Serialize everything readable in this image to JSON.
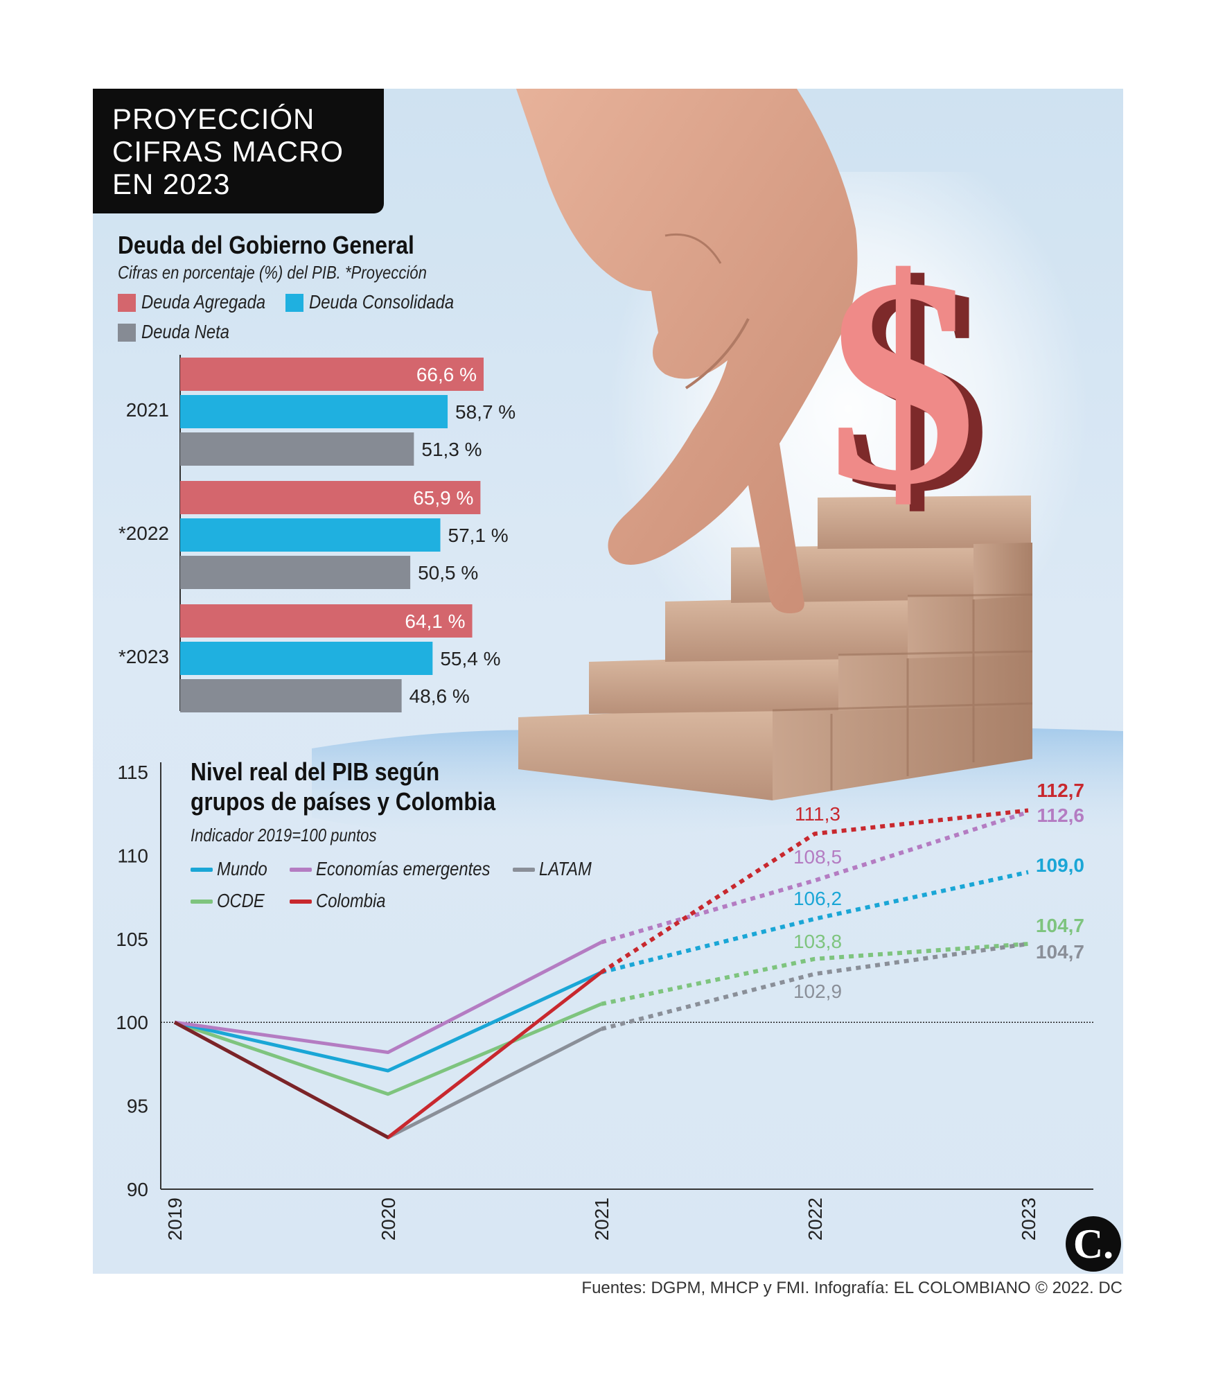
{
  "title": {
    "lines": [
      "PROYECCIÓN",
      "CIFRAS MACRO",
      "EN 2023"
    ]
  },
  "debt": {
    "heading": "Deuda del Gobierno General",
    "subtitle": "Cifras en porcentaje (%) del PIB. *Proyección"
  },
  "pib": {
    "heading_line1": "Nivel real del PIB según",
    "heading_line2": "grupos de países y Colombia",
    "subtitle": "Indicador 2019=100 puntos"
  },
  "chart_data": [
    {
      "type": "bar",
      "orientation": "horizontal",
      "title": "Deuda del Gobierno General",
      "subtitle": "Cifras en porcentaje (%) del PIB. *Proyección",
      "categories": [
        "2021",
        "*2022",
        "*2023"
      ],
      "series": [
        {
          "name": "Deuda Agregada",
          "color": "#d4666d",
          "values": [
            66.6,
            65.9,
            64.1
          ],
          "labels": [
            "66,6 %",
            "65,9 %",
            "64,1 %"
          ]
        },
        {
          "name": "Deuda Consolidada",
          "color": "#1fb0e0",
          "values": [
            58.7,
            57.1,
            55.4
          ],
          "labels": [
            "58,7 %",
            "57,1 %",
            "55,4 %"
          ]
        },
        {
          "name": "Deuda Neta",
          "color": "#868b94",
          "values": [
            51.3,
            50.5,
            48.6
          ],
          "labels": [
            "51,3 %",
            "50,5 %",
            "48,6 %"
          ]
        }
      ],
      "xlim": [
        0,
        66.6
      ]
    },
    {
      "type": "line",
      "title": "Nivel real del PIB según grupos de países y Colombia",
      "subtitle": "Indicador 2019=100 puntos",
      "x": [
        "2019",
        "2020",
        "2021",
        "2022",
        "2023"
      ],
      "projected_from": "2021",
      "ylim": [
        90,
        115
      ],
      "yticks": [
        115,
        110,
        105,
        100,
        95,
        90
      ],
      "reference_line": 100,
      "series": [
        {
          "name": "Mundo",
          "color": "#1aa6d6",
          "values": [
            100,
            97.1,
            103.0,
            106.2,
            109.0
          ]
        },
        {
          "name": "Economías emergentes",
          "color": "#b47cc2",
          "values": [
            100,
            98.2,
            104.8,
            108.5,
            112.6
          ]
        },
        {
          "name": "LATAM",
          "color": "#8a8f98",
          "values": [
            100,
            93.1,
            99.6,
            102.9,
            104.7
          ]
        },
        {
          "name": "OCDE",
          "color": "#7ec47e",
          "values": [
            100,
            95.7,
            101.1,
            103.8,
            104.7
          ]
        },
        {
          "name": "Colombia",
          "color": "#c8282e",
          "values": [
            100,
            93.1,
            103.0,
            111.3,
            112.7
          ]
        }
      ],
      "point_labels_2022": [
        {
          "series": "Colombia",
          "text": "111,3"
        },
        {
          "series": "Economías emergentes",
          "text": "108,5"
        },
        {
          "series": "Mundo",
          "text": "106,2"
        },
        {
          "series": "OCDE",
          "text": "103,8"
        },
        {
          "series": "LATAM",
          "text": "102,9"
        }
      ],
      "point_labels_2023": [
        {
          "series": "Colombia",
          "text": "112,7"
        },
        {
          "series": "Economías emergentes",
          "text": "112,6"
        },
        {
          "series": "Mundo",
          "text": "109,0"
        },
        {
          "series": "OCDE",
          "text": "104,7"
        },
        {
          "series": "LATAM",
          "text": "104,7"
        }
      ]
    }
  ],
  "source": "Fuentes: DGPM, MHCP y FMI. Infografía: EL COLOMBIANO © 2022. DC",
  "logo": "C."
}
